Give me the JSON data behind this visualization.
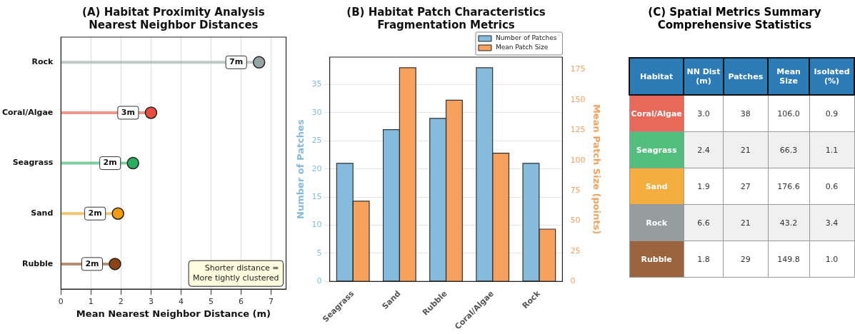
{
  "chart_data": [
    {
      "type": "lollipop",
      "orientation": "horizontal",
      "title": "(A) Habitat Proximity Analysis\nNearest Neighbor Distances",
      "xlabel": "Mean Nearest Neighbor Distance (m)",
      "categories": [
        "Rock",
        "Coral/Algae",
        "Seagrass",
        "Sand",
        "Rubble"
      ],
      "values": [
        6.6,
        3.0,
        2.4,
        1.9,
        1.8
      ],
      "value_labels": [
        "7m",
        "3m",
        "2m",
        "2m",
        "2m"
      ],
      "colors": [
        "#95a5a6",
        "#e74c3c",
        "#27ae60",
        "#f39c12",
        "#8b4513"
      ],
      "xlim": [
        0,
        7.5
      ],
      "xticks": [
        0,
        1,
        2,
        3,
        4,
        5,
        6,
        7
      ],
      "grid": "x",
      "marker": "circle",
      "annotations": [
        "Shorter distance =\nMore tightly clustered"
      ]
    },
    {
      "type": "bar",
      "title": "(B) Habitat Patch Characteristics\nFragmentation Metrics",
      "ylabel": "Number of Patches",
      "y2label": "Mean Patch Size (points)",
      "categories": [
        "Seagrass",
        "Sand",
        "Rubble",
        "Coral/Algae",
        "Rock"
      ],
      "series": [
        {
          "name": "Number of Patches",
          "color": "#85bbdc",
          "values": [
            21,
            27,
            29,
            38,
            21
          ]
        },
        {
          "name": "Mean Patch Size",
          "color": "#f6a15e",
          "axis": "y2",
          "values": [
            66.3,
            176.6,
            149.8,
            106.0,
            43.2
          ]
        }
      ],
      "ylim": [
        0,
        39.9
      ],
      "yticks": [
        0,
        5,
        10,
        15,
        20,
        25,
        30,
        35
      ],
      "y2lim": [
        0,
        185.4
      ],
      "y2ticks": [
        0,
        25,
        50,
        75,
        100,
        125,
        150,
        175
      ],
      "grid": "y",
      "legend": "top right"
    },
    {
      "type": "other",
      "title": "(C) Spatial Metrics Summary\nComprehensive Statistics",
      "xlabel": "Habitat",
      "categories": [
        "Coral/Algae",
        "Seagrass",
        "Sand",
        "Rock",
        "Rubble"
      ],
      "colors": [
        "#e8685a",
        "#52bd7d",
        "#f4ae40",
        "#959d9e",
        "#9b643e"
      ],
      "series": [
        {
          "name": "NN Dist\n(m)",
          "values": [
            3.0,
            2.4,
            1.9,
            6.6,
            1.8
          ],
          "value_labels": [
            "3.0",
            "2.4",
            "1.9",
            "6.6",
            "1.8"
          ],
          "colors": [
            "#ffffff",
            "#f0f0f0",
            "#ffffff",
            "#f0f0f0",
            "#ffffff"
          ]
        },
        {
          "name": "Patches",
          "values": [
            38,
            21,
            27,
            21,
            29
          ],
          "value_labels": [
            "38",
            "21",
            "27",
            "21",
            "29"
          ],
          "colors": [
            "#ffffff",
            "#f0f0f0",
            "#ffffff",
            "#f0f0f0",
            "#ffffff"
          ]
        },
        {
          "name": "Mean\nSize",
          "values": [
            106.0,
            66.3,
            176.6,
            43.2,
            149.8
          ],
          "value_labels": [
            "106.0",
            "66.3",
            "176.6",
            "43.2",
            "149.8"
          ],
          "colors": [
            "#ffffff",
            "#f0f0f0",
            "#ffffff",
            "#f0f0f0",
            "#ffffff"
          ]
        },
        {
          "name": "Isolated\n(%)",
          "values": [
            0.9,
            1.1,
            0.6,
            3.4,
            1.0
          ],
          "value_labels": [
            "0.9",
            "1.1",
            "0.6",
            "3.4",
            "1.0"
          ],
          "colors": [
            "#ffffff",
            "#f0f0f0",
            "#ffffff",
            "#f0f0f0",
            "#ffffff"
          ]
        }
      ]
    }
  ]
}
